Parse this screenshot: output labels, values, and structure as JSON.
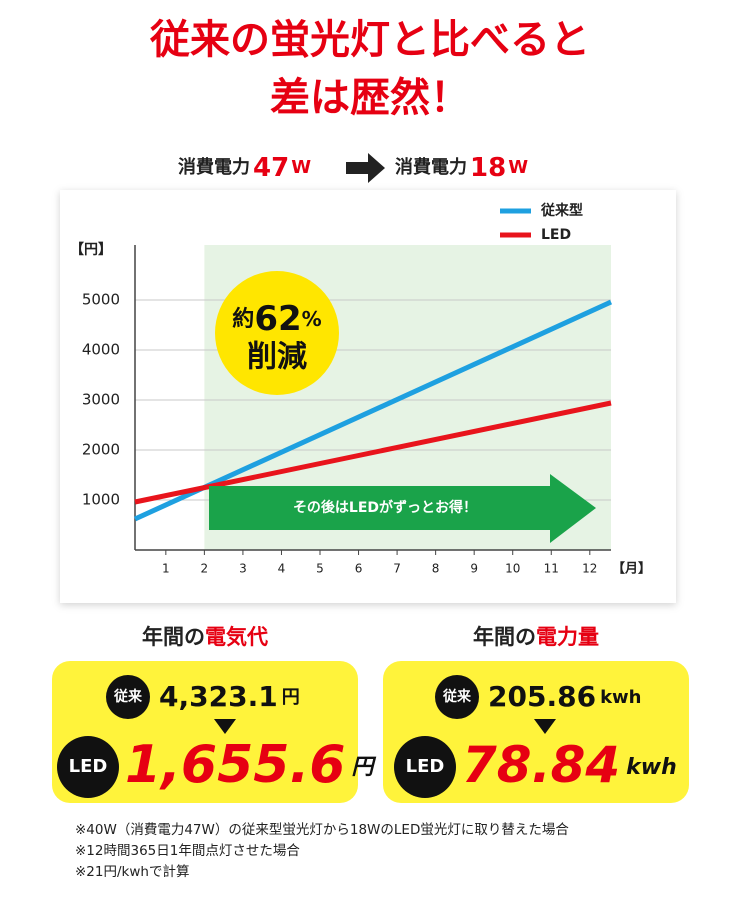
{
  "header": {
    "title_lines": [
      "従来の蛍光灯と比べると",
      "差は歴然！"
    ],
    "power": {
      "before_label": "消費電力",
      "before_value": "47",
      "before_unit": "W",
      "after_label": "消費電力",
      "after_value": "18",
      "after_unit": "W"
    }
  },
  "chart_data": {
    "type": "line",
    "y_label": "【円】",
    "x_label": "【月】",
    "series": [
      {
        "name": "従来型",
        "color": "#1ea0e0",
        "x": [
          0.2,
          12.55
        ],
        "values": [
          620,
          4960
        ]
      },
      {
        "name": "LED",
        "color": "#e8141c",
        "x": [
          0.2,
          12.55
        ],
        "values": [
          960,
          2940
        ]
      }
    ],
    "xlim": [
      0.2,
      12.55
    ],
    "xticks": [
      1,
      2,
      3,
      4,
      5,
      6,
      7,
      8,
      9,
      10,
      11,
      12
    ],
    "ylim": [
      0,
      6100
    ],
    "yticks": [
      1000,
      2000,
      3000,
      4000,
      5000
    ],
    "grid": true,
    "legend": "top-right",
    "highlight_xlim": [
      2,
      12.55
    ],
    "highlight_color": "#e6f3e4",
    "badge": {
      "prefix": "約",
      "value": "62",
      "unit": "%",
      "text": "削減"
    },
    "arrow_text": "その後はLEDがずっとお得！"
  },
  "summary": [
    {
      "heading": "年間の",
      "heading_accent": "電気代",
      "old_badge": "従来",
      "old_value": "4,323.1",
      "old_unit": "円",
      "new_badge": "LED",
      "new_value": "1,655.6",
      "new_unit": "円"
    },
    {
      "heading": "年間の",
      "heading_accent": "電力量",
      "old_badge": "従来",
      "old_value": "205.86",
      "old_unit": "kwh",
      "new_badge": "LED",
      "new_value": "78.84",
      "new_unit": "kwh"
    }
  ],
  "notes": [
    "※40W（消費電力47W）の従来型蛍光灯から18WのLED蛍光灯に取り替えた場合",
    "※12時間365日1年間点灯させた場合",
    "※21円/kwhで計算"
  ]
}
